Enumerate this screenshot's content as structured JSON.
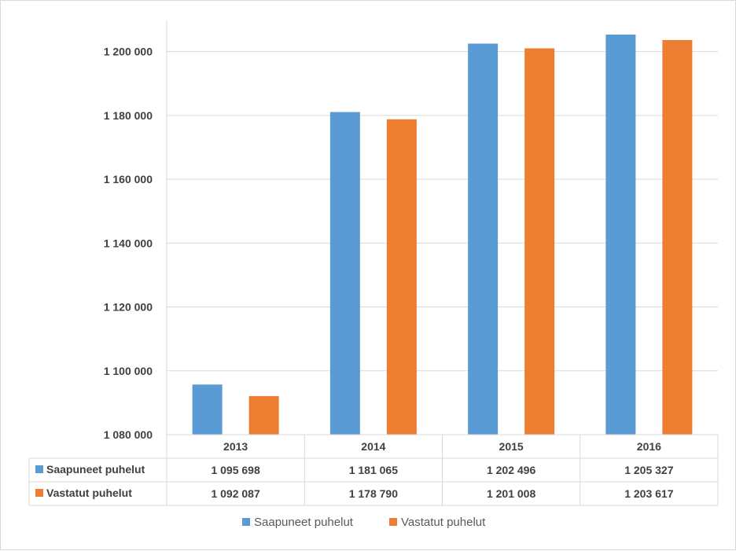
{
  "chart_data": {
    "type": "bar",
    "categories": [
      "2013",
      "2014",
      "2015",
      "2016"
    ],
    "series": [
      {
        "name": "Saapuneet puhelut",
        "color": "#5b9bd5",
        "values": [
          1095698,
          1181065,
          1202496,
          1205327
        ],
        "labels": [
          "1 095 698",
          "1 181 065",
          "1 202 496",
          "1 205 327"
        ]
      },
      {
        "name": "Vastatut puhelut",
        "color": "#ed7d31",
        "values": [
          1092087,
          1178790,
          1201008,
          1203617
        ],
        "labels": [
          "1 092 087",
          "1 178 790",
          "1 201 008",
          "1 203 617"
        ]
      }
    ],
    "ylim": [
      1080000,
      1210000
    ],
    "yticks": [
      1080000,
      1100000,
      1120000,
      1140000,
      1160000,
      1180000,
      1200000
    ],
    "ytick_labels": [
      "1 080 000",
      "1 100 000",
      "1 120 000",
      "1 140 000",
      "1 160 000",
      "1 180 000",
      "1 200 000"
    ],
    "grid": true,
    "data_table": true,
    "legend_position": "bottom"
  }
}
